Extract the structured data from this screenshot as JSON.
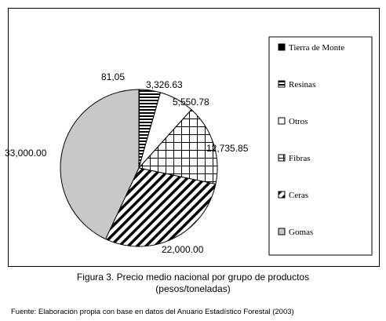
{
  "chart_data": {
    "type": "pie",
    "series": [
      {
        "category": "Tierra de Monte",
        "label": "81,05",
        "value": 81.05,
        "pattern": "solid-black"
      },
      {
        "category": "Resinas",
        "label": "3,326.63",
        "value": 3326.63,
        "pattern": "horizontal-lines"
      },
      {
        "category": "Otros",
        "label": "5,550.78",
        "value": 5550.78,
        "pattern": "white"
      },
      {
        "category": "Fibras",
        "label": "12,735.85",
        "value": 12735.85,
        "pattern": "grid"
      },
      {
        "category": "Ceras",
        "label": "22,000.00",
        "value": 22000.0,
        "pattern": "diagonal-lines"
      },
      {
        "category": "Gomas",
        "label": "33,000.00",
        "value": 33000.0,
        "pattern": "light-gray"
      }
    ],
    "legend": [
      "Tierra de Monte",
      "Resinas",
      "Otros",
      "Fibras",
      "Ceras",
      "Gomas"
    ],
    "legend_position": "right"
  },
  "caption": {
    "line1": "Figura 3. Precio medio nacional por grupo de productos",
    "line2": "(pesos/toneladas)"
  },
  "source": "Fuente: Elaboración propia con base en datos del Anuario Estadístico Forestal (2003)",
  "colors": {
    "gray": "#c8c8c8",
    "black": "#000000"
  }
}
